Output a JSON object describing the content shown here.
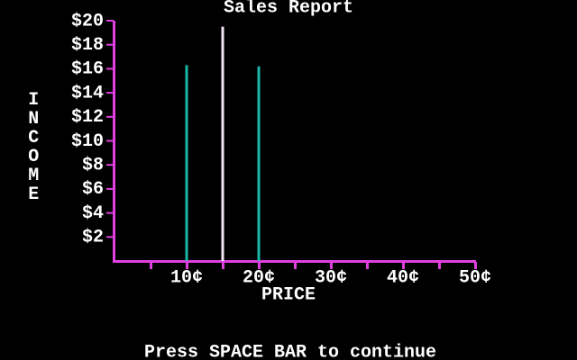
{
  "chart_data": {
    "type": "bar",
    "title": "Sales Report",
    "x_label": "PRICE",
    "y_label": "INCOME",
    "x": [
      10,
      15,
      20
    ],
    "values": [
      16.3,
      19.5,
      16.2
    ],
    "colors": [
      "#1ab8a8",
      "#f4e4f4",
      "#1ab8a8"
    ],
    "axis_color": "#e040e0",
    "xlim": [
      0,
      50
    ],
    "xticks": [
      {
        "value": 10,
        "label": "10¢"
      },
      {
        "value": 20,
        "label": "20¢"
      },
      {
        "value": 30,
        "label": "30¢"
      },
      {
        "value": 40,
        "label": "40¢"
      },
      {
        "value": 50,
        "label": "50¢"
      }
    ],
    "xminorticks": [
      5,
      15,
      25,
      35,
      45
    ],
    "ylim": [
      0,
      20
    ],
    "yticks": [
      {
        "value": 2,
        "label": "$2"
      },
      {
        "value": 4,
        "label": "$4"
      },
      {
        "value": 6,
        "label": "$6"
      },
      {
        "value": 8,
        "label": "$8"
      },
      {
        "value": 10,
        "label": "$10"
      },
      {
        "value": 12,
        "label": "$12"
      },
      {
        "value": 14,
        "label": "$14"
      },
      {
        "value": 16,
        "label": "$16"
      },
      {
        "value": 18,
        "label": "$18"
      },
      {
        "value": 20,
        "label": "$20"
      }
    ],
    "footer": "Press SPACE BAR to continue"
  }
}
